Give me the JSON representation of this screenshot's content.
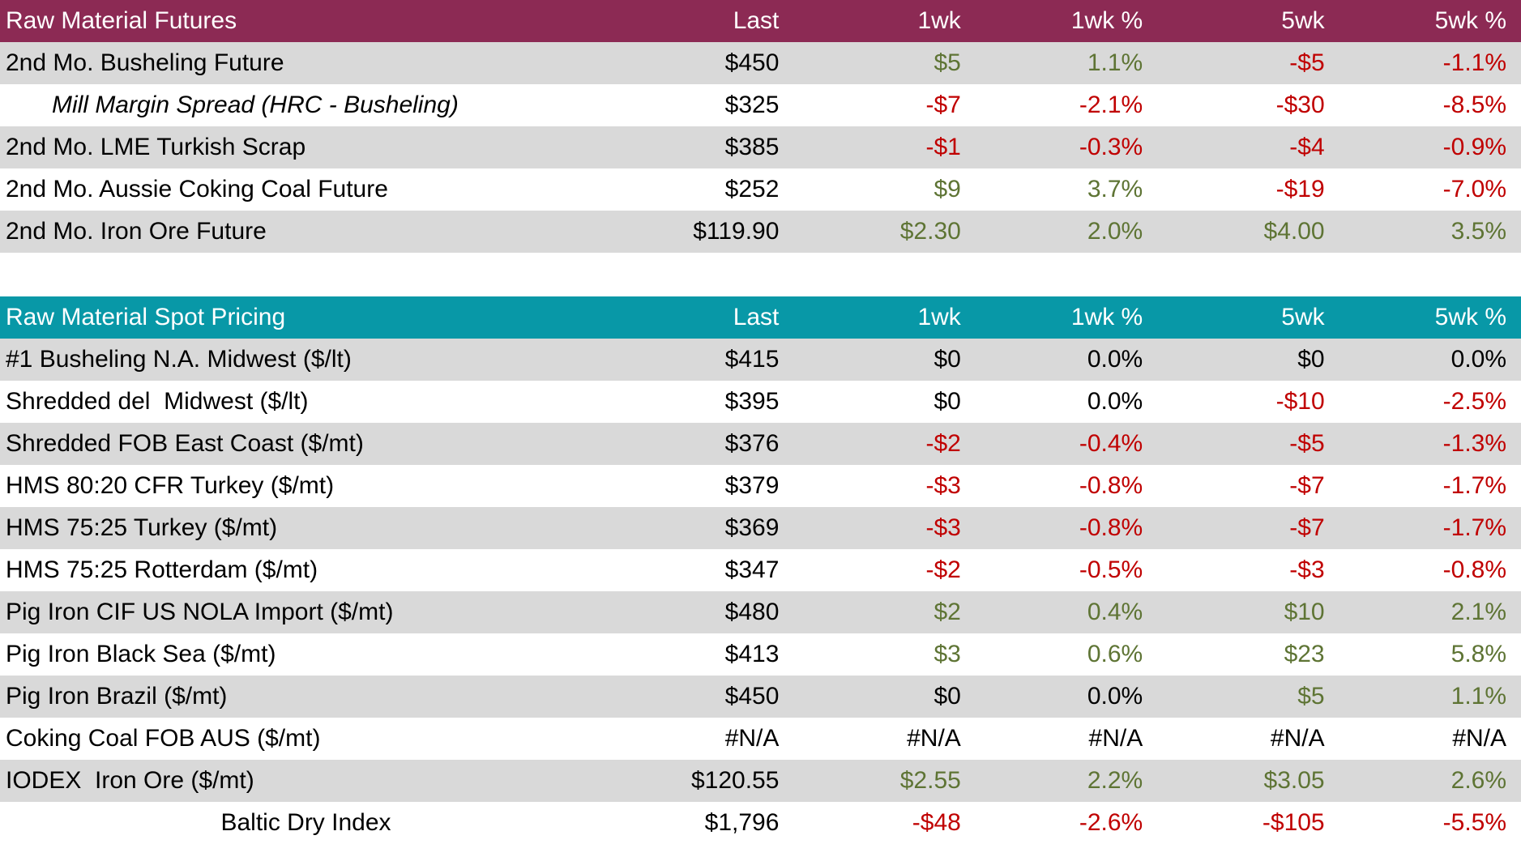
{
  "palette": {
    "futures_header_bg": "#8C2A54",
    "spot_header_bg": "#0898A7",
    "header_text": "#FFFFFF",
    "row_alt_bg": "#D9D9D9",
    "row_bg": "#FFFFFF",
    "neutral_text": "#000000",
    "positive_text": "#5E7434",
    "negative_text": "#C00000"
  },
  "columns": [
    "Last",
    "1wk",
    "1wk %",
    "5wk",
    "5wk %"
  ],
  "tables": [
    {
      "title": "Raw Material Futures",
      "rows": [
        {
          "label": "2nd Mo. Busheling Future",
          "cells": [
            {
              "text": "$450",
              "tone": "flat"
            },
            {
              "text": "$5",
              "tone": "up"
            },
            {
              "text": "1.1%",
              "tone": "up"
            },
            {
              "text": "-$5",
              "tone": "down"
            },
            {
              "text": "-1.1%",
              "tone": "down"
            }
          ]
        },
        {
          "label": "Mill Margin Spread (HRC - Busheling)",
          "italic": true,
          "cells": [
            {
              "text": "$325",
              "tone": "flat"
            },
            {
              "text": "-$7",
              "tone": "down"
            },
            {
              "text": "-2.1%",
              "tone": "down"
            },
            {
              "text": "-$30",
              "tone": "down"
            },
            {
              "text": "-8.5%",
              "tone": "down"
            }
          ]
        },
        {
          "label": "2nd Mo. LME Turkish Scrap",
          "cells": [
            {
              "text": "$385",
              "tone": "flat"
            },
            {
              "text": "-$1",
              "tone": "down"
            },
            {
              "text": "-0.3%",
              "tone": "down"
            },
            {
              "text": "-$4",
              "tone": "down"
            },
            {
              "text": "-0.9%",
              "tone": "down"
            }
          ]
        },
        {
          "label": "2nd Mo. Aussie Coking Coal Future",
          "cells": [
            {
              "text": "$252",
              "tone": "flat"
            },
            {
              "text": "$9",
              "tone": "up"
            },
            {
              "text": "3.7%",
              "tone": "up"
            },
            {
              "text": "-$19",
              "tone": "down"
            },
            {
              "text": "-7.0%",
              "tone": "down"
            }
          ]
        },
        {
          "label": "2nd Mo. Iron Ore Future",
          "cells": [
            {
              "text": "$119.90",
              "tone": "flat"
            },
            {
              "text": "$2.30",
              "tone": "up"
            },
            {
              "text": "2.0%",
              "tone": "up"
            },
            {
              "text": "$4.00",
              "tone": "up"
            },
            {
              "text": "3.5%",
              "tone": "up"
            }
          ]
        }
      ]
    },
    {
      "title": "Raw Material Spot Pricing",
      "rows": [
        {
          "label": "#1 Busheling N.A. Midwest ($/lt)",
          "cells": [
            {
              "text": "$415",
              "tone": "flat"
            },
            {
              "text": "$0",
              "tone": "flat"
            },
            {
              "text": "0.0%",
              "tone": "flat"
            },
            {
              "text": "$0",
              "tone": "flat"
            },
            {
              "text": "0.0%",
              "tone": "flat"
            }
          ]
        },
        {
          "label": "Shredded del  Midwest ($/lt)",
          "cells": [
            {
              "text": "$395",
              "tone": "flat"
            },
            {
              "text": "$0",
              "tone": "flat"
            },
            {
              "text": "0.0%",
              "tone": "flat"
            },
            {
              "text": "-$10",
              "tone": "down"
            },
            {
              "text": "-2.5%",
              "tone": "down"
            }
          ]
        },
        {
          "label": "Shredded FOB East Coast ($/mt)",
          "cells": [
            {
              "text": "$376",
              "tone": "flat"
            },
            {
              "text": "-$2",
              "tone": "down"
            },
            {
              "text": "-0.4%",
              "tone": "down"
            },
            {
              "text": "-$5",
              "tone": "down"
            },
            {
              "text": "-1.3%",
              "tone": "down"
            }
          ]
        },
        {
          "label": "HMS 80:20 CFR Turkey ($/mt)",
          "cells": [
            {
              "text": "$379",
              "tone": "flat"
            },
            {
              "text": "-$3",
              "tone": "down"
            },
            {
              "text": "-0.8%",
              "tone": "down"
            },
            {
              "text": "-$7",
              "tone": "down"
            },
            {
              "text": "-1.7%",
              "tone": "down"
            }
          ]
        },
        {
          "label": "HMS 75:25 Turkey ($/mt)",
          "cells": [
            {
              "text": "$369",
              "tone": "flat"
            },
            {
              "text": "-$3",
              "tone": "down"
            },
            {
              "text": "-0.8%",
              "tone": "down"
            },
            {
              "text": "-$7",
              "tone": "down"
            },
            {
              "text": "-1.7%",
              "tone": "down"
            }
          ]
        },
        {
          "label": "HMS 75:25 Rotterdam ($/mt)",
          "cells": [
            {
              "text": "$347",
              "tone": "flat"
            },
            {
              "text": "-$2",
              "tone": "down"
            },
            {
              "text": "-0.5%",
              "tone": "down"
            },
            {
              "text": "-$3",
              "tone": "down"
            },
            {
              "text": "-0.8%",
              "tone": "down"
            }
          ]
        },
        {
          "label": "Pig Iron CIF US NOLA Import ($/mt)",
          "cells": [
            {
              "text": "$480",
              "tone": "flat"
            },
            {
              "text": "$2",
              "tone": "up"
            },
            {
              "text": "0.4%",
              "tone": "up"
            },
            {
              "text": "$10",
              "tone": "up"
            },
            {
              "text": "2.1%",
              "tone": "up"
            }
          ]
        },
        {
          "label": "Pig Iron Black Sea ($/mt)",
          "cells": [
            {
              "text": "$413",
              "tone": "flat"
            },
            {
              "text": "$3",
              "tone": "up"
            },
            {
              "text": "0.6%",
              "tone": "up"
            },
            {
              "text": "$23",
              "tone": "up"
            },
            {
              "text": "5.8%",
              "tone": "up"
            }
          ]
        },
        {
          "label": "Pig Iron Brazil ($/mt)",
          "cells": [
            {
              "text": "$450",
              "tone": "flat"
            },
            {
              "text": "$0",
              "tone": "flat"
            },
            {
              "text": "0.0%",
              "tone": "flat"
            },
            {
              "text": "$5",
              "tone": "up"
            },
            {
              "text": "1.1%",
              "tone": "up"
            }
          ]
        },
        {
          "label": "Coking Coal FOB AUS ($/mt)",
          "cells": [
            {
              "text": "#N/A",
              "tone": "flat"
            },
            {
              "text": "#N/A",
              "tone": "flat"
            },
            {
              "text": "#N/A",
              "tone": "flat"
            },
            {
              "text": "#N/A",
              "tone": "flat"
            },
            {
              "text": "#N/A",
              "tone": "flat"
            }
          ]
        },
        {
          "label": "IODEX  Iron Ore ($/mt)",
          "cells": [
            {
              "text": "$120.55",
              "tone": "flat"
            },
            {
              "text": "$2.55",
              "tone": "up"
            },
            {
              "text": "2.2%",
              "tone": "up"
            },
            {
              "text": "$3.05",
              "tone": "up"
            },
            {
              "text": "2.6%",
              "tone": "up"
            }
          ]
        },
        {
          "label": "Baltic Dry Index",
          "center": true,
          "cells": [
            {
              "text": "$1,796",
              "tone": "flat"
            },
            {
              "text": "-$48",
              "tone": "down"
            },
            {
              "text": "-2.6%",
              "tone": "down"
            },
            {
              "text": "-$105",
              "tone": "down"
            },
            {
              "text": "-5.5%",
              "tone": "down"
            }
          ]
        }
      ]
    }
  ]
}
